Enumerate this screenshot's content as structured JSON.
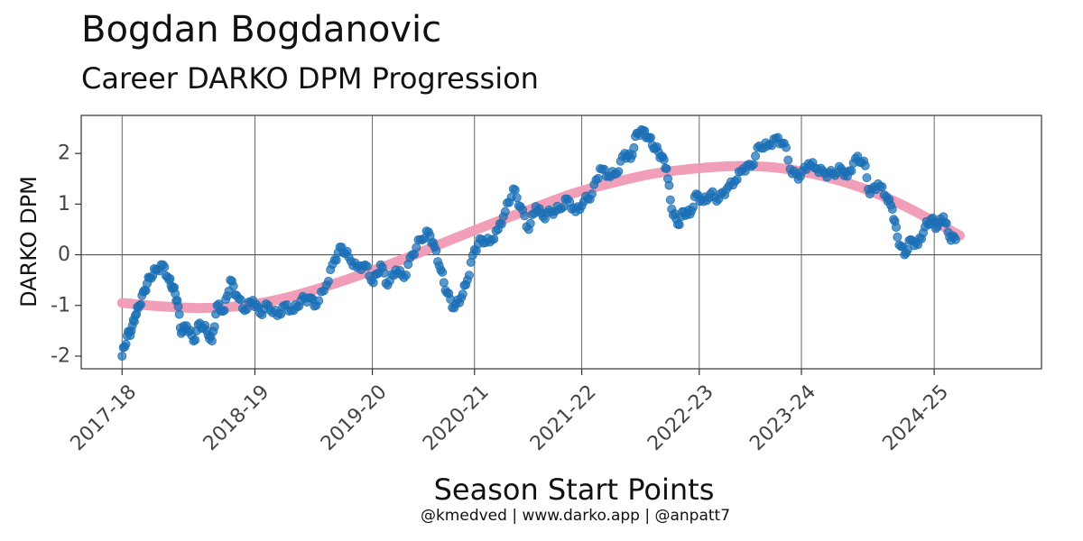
{
  "chart_data": {
    "type": "scatter",
    "title": "Bogdan Bogdanovic",
    "subtitle": "Career DARKO DPM Progression",
    "xlabel": "Season Start Points",
    "ylabel": "DARKO DPM",
    "caption": "@kmedved | www.darko.app | @anpatt7",
    "x_tick_labels": [
      "2017-18",
      "2018-19",
      "2019-20",
      "2020-21",
      "2021-22",
      "2022-23",
      "2023-24",
      "2024-25"
    ],
    "y_ticks": [
      -2,
      -1,
      0,
      1,
      2
    ],
    "y_tick_labels": [
      "-2",
      "-1",
      "0",
      "1",
      "2"
    ],
    "ylim": [
      -2.25,
      2.75
    ],
    "reference_line_y": 0,
    "grid": "vertical lines at season starts",
    "colors": {
      "points": "#1a6fb5",
      "trend": "#f09ab4",
      "grid": "#555555",
      "panel_border": "#333333"
    },
    "series": [
      {
        "kind": "points",
        "description_anchors": [
          [
            0.0,
            -2.0
          ],
          [
            0.5,
            -1.6
          ],
          [
            0.9,
            -1.5
          ],
          [
            1.3,
            -1.2
          ],
          [
            1.7,
            -1.0
          ],
          [
            2.2,
            -0.7
          ],
          [
            2.7,
            -0.45
          ],
          [
            3.3,
            -0.3
          ],
          [
            4.0,
            -0.2
          ],
          [
            4.6,
            -0.5
          ],
          [
            5.0,
            -0.65
          ],
          [
            5.4,
            -0.9
          ],
          [
            5.8,
            -1.55
          ],
          [
            6.3,
            -1.4
          ],
          [
            7.0,
            -1.7
          ],
          [
            7.6,
            -1.35
          ],
          [
            8.3,
            -1.5
          ],
          [
            8.8,
            -1.7
          ],
          [
            9.3,
            -1.0
          ],
          [
            10.0,
            -1.1
          ],
          [
            10.6,
            -0.5
          ],
          [
            11.2,
            -0.8
          ],
          [
            12.0,
            -1.1
          ],
          [
            12.8,
            -0.9
          ],
          [
            13.5,
            -1.15
          ],
          [
            14.3,
            -1.0
          ],
          [
            15.2,
            -1.2
          ],
          [
            15.9,
            -1.0
          ],
          [
            16.8,
            -1.1
          ],
          [
            17.5,
            -0.9
          ],
          [
            18.3,
            -0.85
          ],
          [
            19.0,
            -1.0
          ],
          [
            20.0,
            -0.6
          ],
          [
            20.8,
            -0.1
          ],
          [
            21.5,
            0.15
          ],
          [
            22.2,
            -0.05
          ],
          [
            23.0,
            -0.25
          ],
          [
            23.8,
            -0.2
          ],
          [
            24.6,
            -0.55
          ],
          [
            25.3,
            -0.2
          ],
          [
            26.0,
            -0.6
          ],
          [
            26.8,
            -0.3
          ],
          [
            27.6,
            -0.45
          ],
          [
            28.4,
            0.0
          ],
          [
            29.2,
            0.3
          ],
          [
            30.0,
            0.45
          ],
          [
            30.6,
            0.15
          ],
          [
            31.2,
            -0.3
          ],
          [
            31.8,
            -0.75
          ],
          [
            32.5,
            -1.05
          ],
          [
            33.2,
            -0.85
          ],
          [
            33.8,
            -0.5
          ],
          [
            34.5,
            0.1
          ],
          [
            35.2,
            0.3
          ],
          [
            36.0,
            0.25
          ],
          [
            36.8,
            0.5
          ],
          [
            37.5,
            0.85
          ],
          [
            38.3,
            1.3
          ],
          [
            39.0,
            0.95
          ],
          [
            39.8,
            0.5
          ],
          [
            40.5,
            0.95
          ],
          [
            41.2,
            0.75
          ],
          [
            42.0,
            0.85
          ],
          [
            42.8,
            0.9
          ],
          [
            43.6,
            1.1
          ],
          [
            44.4,
            0.85
          ],
          [
            45.2,
            1.05
          ],
          [
            46.0,
            1.2
          ],
          [
            46.8,
            1.7
          ],
          [
            47.6,
            1.55
          ],
          [
            48.4,
            1.6
          ],
          [
            49.2,
            2.0
          ],
          [
            49.8,
            1.9
          ],
          [
            50.4,
            2.4
          ],
          [
            51.0,
            2.45
          ],
          [
            51.6,
            2.3
          ],
          [
            52.2,
            2.1
          ],
          [
            52.8,
            1.95
          ],
          [
            53.3,
            1.7
          ],
          [
            53.8,
            0.9
          ],
          [
            54.4,
            0.6
          ],
          [
            55.0,
            0.85
          ],
          [
            55.6,
            0.8
          ],
          [
            56.2,
            1.2
          ],
          [
            56.9,
            1.05
          ],
          [
            57.6,
            1.2
          ],
          [
            58.4,
            1.1
          ],
          [
            59.2,
            1.3
          ],
          [
            60.0,
            1.45
          ],
          [
            60.8,
            1.7
          ],
          [
            61.6,
            1.75
          ],
          [
            62.4,
            2.15
          ],
          [
            63.2,
            2.15
          ],
          [
            64.0,
            2.3
          ],
          [
            64.8,
            2.2
          ],
          [
            65.6,
            1.6
          ],
          [
            66.4,
            1.55
          ],
          [
            67.2,
            1.8
          ],
          [
            68.0,
            1.7
          ],
          [
            68.8,
            1.6
          ],
          [
            69.6,
            1.6
          ],
          [
            70.4,
            1.7
          ],
          [
            71.0,
            1.55
          ],
          [
            71.8,
            1.9
          ],
          [
            72.6,
            1.85
          ],
          [
            73.2,
            1.2
          ],
          [
            74.0,
            1.4
          ],
          [
            74.8,
            1.15
          ],
          [
            75.4,
            0.9
          ],
          [
            75.9,
            0.35
          ],
          [
            76.6,
            0.0
          ],
          [
            77.2,
            0.3
          ],
          [
            77.9,
            0.2
          ],
          [
            78.6,
            0.55
          ],
          [
            79.2,
            0.7
          ],
          [
            79.8,
            0.55
          ],
          [
            80.4,
            0.75
          ],
          [
            81.0,
            0.35
          ],
          [
            81.6,
            0.3
          ]
        ]
      },
      {
        "kind": "trend",
        "description_anchors": [
          [
            0.0,
            -0.95
          ],
          [
            4.0,
            -1.02
          ],
          [
            8.0,
            -1.05
          ],
          [
            12.0,
            -1.0
          ],
          [
            16.0,
            -0.85
          ],
          [
            20.0,
            -0.62
          ],
          [
            24.0,
            -0.35
          ],
          [
            28.0,
            -0.05
          ],
          [
            32.0,
            0.28
          ],
          [
            36.0,
            0.6
          ],
          [
            40.0,
            0.9
          ],
          [
            44.0,
            1.2
          ],
          [
            48.0,
            1.42
          ],
          [
            52.0,
            1.6
          ],
          [
            56.0,
            1.7
          ],
          [
            60.0,
            1.75
          ],
          [
            64.0,
            1.72
          ],
          [
            68.0,
            1.58
          ],
          [
            72.0,
            1.35
          ],
          [
            76.0,
            1.02
          ],
          [
            80.0,
            0.6
          ],
          [
            82.0,
            0.38
          ]
        ]
      }
    ],
    "x_domain": [
      -4,
      90
    ],
    "x_tick_positions": [
      0,
      13,
      24.5,
      34.5,
      45,
      56.5,
      66.5,
      79.5
    ]
  }
}
